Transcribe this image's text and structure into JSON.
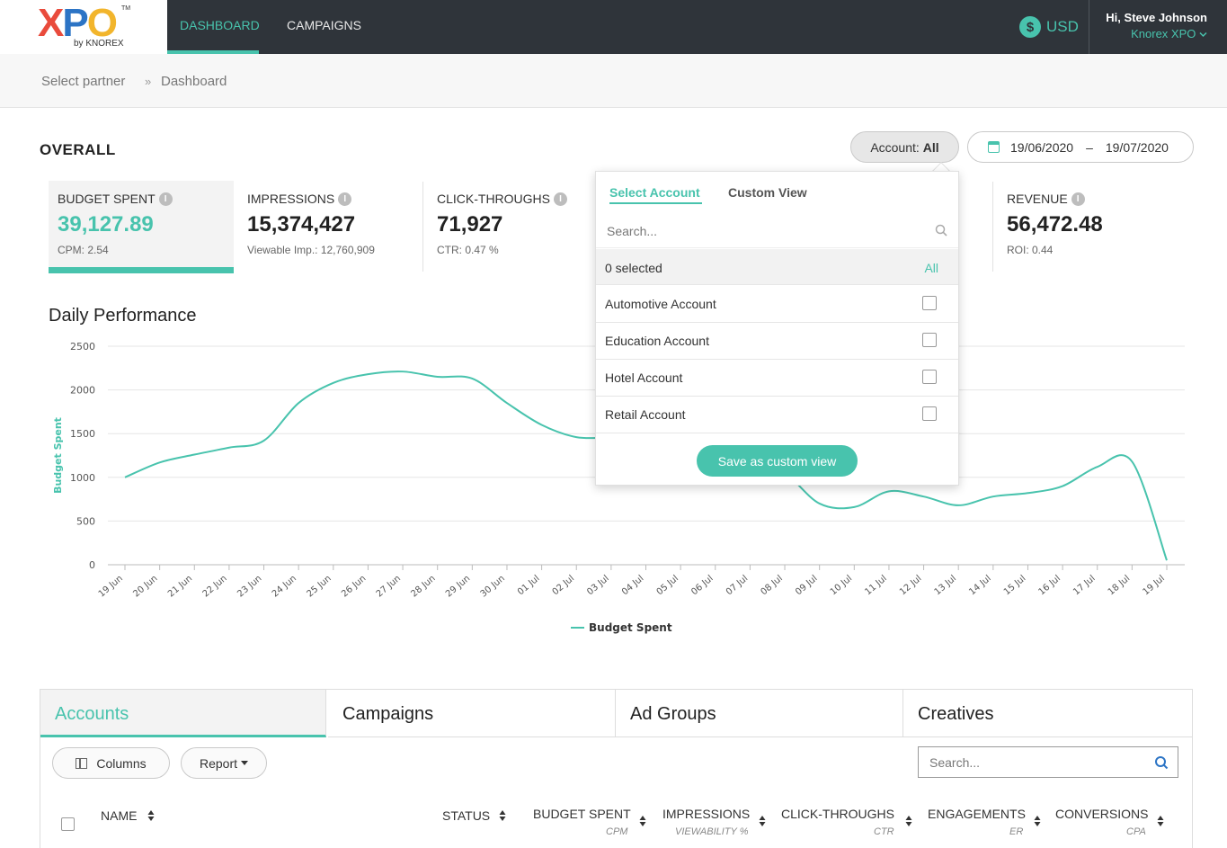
{
  "header": {
    "logo": {
      "x": "X",
      "p": "P",
      "o": "O",
      "tm": "TM",
      "sub": "by KNOREX"
    },
    "nav": [
      {
        "label": "DASHBOARD",
        "active": true
      },
      {
        "label": "CAMPAIGNS",
        "active": false
      }
    ],
    "currency": {
      "symbol": "$",
      "label": "USD"
    },
    "user": {
      "greeting": "Hi, Steve Johnson",
      "org": "Knorex XPO"
    }
  },
  "breadcrumb": {
    "items": [
      "Select partner",
      "Dashboard"
    ],
    "separator": "»"
  },
  "overall": {
    "title": "OVERALL",
    "account_filter": {
      "prefix": "Account:",
      "value": "All"
    },
    "date_range": {
      "start": "19/06/2020",
      "separator": "–",
      "end": "19/07/2020"
    }
  },
  "kpis": [
    {
      "label": "BUDGET SPENT",
      "value": "39,127.89",
      "sub": "CPM: 2.54",
      "active": true
    },
    {
      "label": "IMPRESSIONS",
      "value": "15,374,427",
      "sub": "Viewable Imp.: 12,760,909"
    },
    {
      "label": "CLICK-THROUGHS",
      "value": "71,927",
      "sub": "CTR: 0.47 %"
    },
    {
      "label": "REVENUE",
      "value": "56,472.48",
      "sub": "ROI: 0.44"
    }
  ],
  "info_icon_glyph": "i",
  "chart_section_title": "Daily Performance",
  "chart_data": {
    "type": "line",
    "title": "Daily Performance",
    "ylabel": "Budget Spent",
    "xlabel": "",
    "ylim": [
      0,
      2500
    ],
    "yticks": [
      0,
      500,
      1000,
      1500,
      2000,
      2500
    ],
    "x": [
      "19 Jun",
      "20 Jun",
      "21 Jun",
      "22 Jun",
      "23 Jun",
      "24 Jun",
      "25 Jun",
      "26 Jun",
      "27 Jun",
      "28 Jun",
      "29 Jun",
      "30 Jun",
      "01 Jul",
      "02 Jul",
      "03 Jul",
      "04 Jul",
      "05 Jul",
      "06 Jul",
      "07 Jul",
      "08 Jul",
      "09 Jul",
      "10 Jul",
      "11 Jul",
      "12 Jul",
      "13 Jul",
      "14 Jul",
      "15 Jul",
      "16 Jul",
      "17 Jul",
      "18 Jul",
      "19 Jul"
    ],
    "series": [
      {
        "name": "Budget Spent",
        "color": "#48c3ad",
        "values": [
          1000,
          1170,
          1260,
          1340,
          1420,
          1850,
          2080,
          2180,
          2210,
          2150,
          2130,
          1850,
          1600,
          1460,
          1450,
          1400,
          1350,
          1300,
          1200,
          1050,
          700,
          660,
          840,
          780,
          680,
          780,
          820,
          900,
          1120,
          1180,
          50
        ]
      }
    ],
    "legend": "bottom-center",
    "grid": true
  },
  "account_dropdown": {
    "tabs": [
      {
        "label": "Select Account",
        "active": true
      },
      {
        "label": "Custom View",
        "active": false
      }
    ],
    "search_placeholder": "Search...",
    "selected_text": "0 selected",
    "all_label": "All",
    "items": [
      "Automotive Account",
      "Education Account",
      "Hotel Account",
      "Retail Account"
    ],
    "save_label": "Save as custom view"
  },
  "bottom_tabs": [
    {
      "label": "Accounts",
      "active": true
    },
    {
      "label": "Campaigns",
      "active": false
    },
    {
      "label": "Ad Groups",
      "active": false
    },
    {
      "label": "Creatives",
      "active": false
    }
  ],
  "table_toolbar": {
    "columns_label": "Columns",
    "report_label": "Report",
    "search_placeholder": "Search..."
  },
  "table_columns": [
    {
      "label": "NAME",
      "sub": ""
    },
    {
      "label": "STATUS",
      "sub": ""
    },
    {
      "label": "BUDGET SPENT",
      "sub": "CPM"
    },
    {
      "label": "IMPRESSIONS",
      "sub": "VIEWABILITY %"
    },
    {
      "label": "CLICK-THROUGHS",
      "sub": "CTR"
    },
    {
      "label": "ENGAGEMENTS",
      "sub": "ER"
    },
    {
      "label": "CONVERSIONS",
      "sub": "CPA"
    }
  ],
  "colors": {
    "accent": "#48c3ad",
    "topbar": "#2f343a"
  }
}
